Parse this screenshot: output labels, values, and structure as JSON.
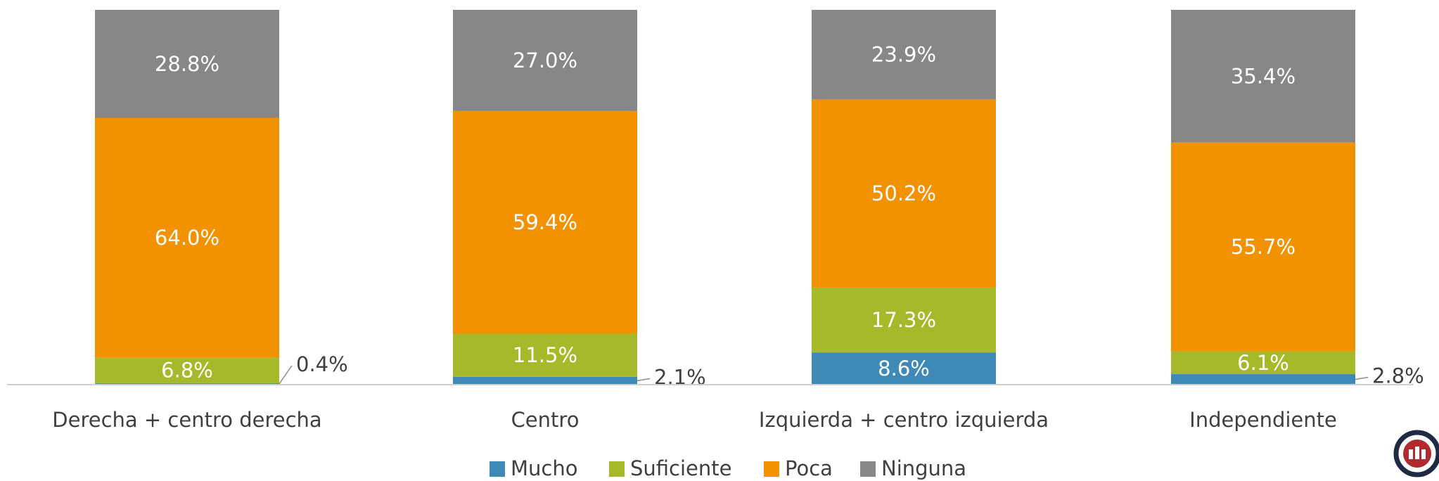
{
  "chart_data": {
    "type": "stacked_bar",
    "categories": [
      "Derecha + centro derecha",
      "Centro",
      "Izquierda + centro izquierda",
      "Independiente"
    ],
    "series": [
      {
        "name": "Mucho",
        "color": "#3f89b6",
        "values": [
          0.4,
          2.1,
          8.6,
          2.8
        ],
        "value_labels": [
          "0.4%",
          "2.1%",
          "8.6%",
          "2.8%"
        ]
      },
      {
        "name": "Suficiente",
        "color": "#a5b92a",
        "values": [
          6.8,
          11.5,
          17.3,
          6.1
        ],
        "value_labels": [
          "6.8%",
          "11.5%",
          "17.3%",
          "6.1%"
        ]
      },
      {
        "name": "Poca",
        "color": "#f39200",
        "values": [
          64.0,
          59.4,
          50.2,
          55.7
        ],
        "value_labels": [
          "64.0%",
          "59.4%",
          "50.2%",
          "55.7%"
        ]
      },
      {
        "name": "Ninguna",
        "color": "#878787",
        "values": [
          28.8,
          27.0,
          23.9,
          35.4
        ],
        "value_labels": [
          "28.8%",
          "27.0%",
          "23.9%",
          "35.4%"
        ]
      }
    ],
    "ylim": [
      0,
      100
    ],
    "legend": "bottom"
  }
}
